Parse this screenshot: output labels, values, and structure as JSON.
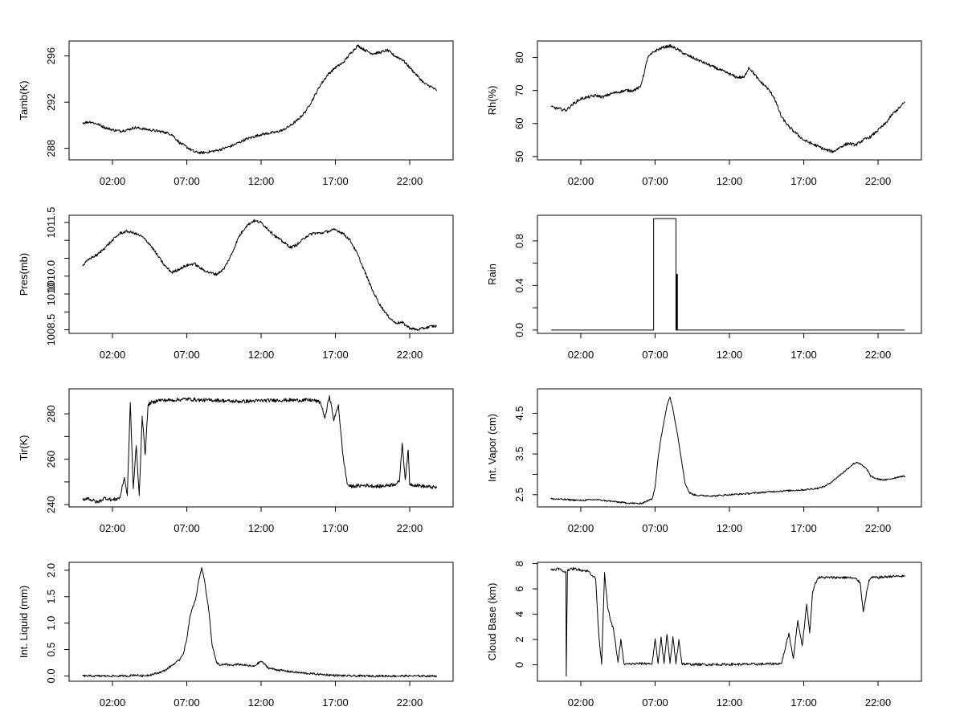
{
  "chart_data": [
    {
      "type": "line",
      "ylabel": "Tamb(K)",
      "xticks": [
        "02:00",
        "07:00",
        "12:00",
        "17:00",
        "22:00"
      ],
      "xlim": [
        0,
        24
      ],
      "ylim": [
        287,
        297.3
      ],
      "yticks": [
        288,
        292,
        296
      ],
      "noise": 0.12,
      "x": [
        0,
        0.5,
        1.0,
        1.5,
        2.0,
        2.5,
        3.0,
        3.5,
        4.0,
        4.5,
        5.0,
        5.5,
        6.0,
        6.5,
        7.0,
        7.5,
        8.0,
        8.5,
        9.0,
        9.5,
        10.0,
        10.5,
        11.0,
        11.5,
        12.0,
        12.5,
        13.0,
        13.5,
        14.0,
        14.5,
        15.0,
        15.5,
        16.0,
        16.5,
        17.0,
        17.5,
        18.0,
        18.5,
        19.0,
        19.5,
        20.0,
        20.5,
        21.0,
        21.5,
        22.0,
        22.5,
        23.0,
        23.5,
        23.8
      ],
      "values": [
        290.2,
        290.3,
        290.1,
        289.8,
        289.6,
        289.5,
        289.6,
        289.8,
        289.7,
        289.6,
        289.5,
        289.4,
        289.2,
        288.5,
        288.1,
        287.7,
        287.6,
        287.7,
        287.8,
        288.0,
        288.2,
        288.5,
        288.8,
        289.0,
        289.2,
        289.3,
        289.4,
        289.6,
        290.0,
        290.5,
        291.2,
        292.3,
        293.5,
        294.4,
        295.0,
        295.4,
        296.2,
        296.9,
        296.5,
        296.2,
        296.3,
        296.5,
        296.0,
        295.7,
        295.0,
        294.3,
        293.6,
        293.3,
        293.0
      ]
    },
    {
      "type": "line",
      "ylabel": "Rh(%)",
      "xticks": [
        "02:00",
        "07:00",
        "12:00",
        "17:00",
        "22:00"
      ],
      "xlim": [
        0,
        24
      ],
      "ylim": [
        49,
        85
      ],
      "yticks": [
        50,
        60,
        70,
        80
      ],
      "noise": 0.45,
      "x": [
        0,
        0.5,
        1.0,
        1.5,
        2.0,
        2.5,
        3.0,
        3.5,
        4.0,
        4.5,
        5.0,
        5.5,
        6.0,
        6.3,
        6.5,
        7.0,
        7.5,
        8.0,
        8.5,
        9.0,
        9.5,
        10.0,
        10.5,
        11.0,
        11.5,
        12.0,
        12.5,
        13.0,
        13.3,
        13.5,
        14.0,
        14.5,
        15.0,
        15.5,
        16.0,
        16.5,
        17.0,
        17.5,
        18.0,
        18.5,
        19.0,
        19.5,
        20.0,
        20.5,
        21.0,
        21.5,
        22.0,
        22.5,
        23.0,
        23.5,
        23.8
      ],
      "values": [
        65,
        64.5,
        64,
        66,
        67.5,
        68,
        68.5,
        68,
        69,
        69.5,
        70,
        70,
        71,
        76,
        80,
        82,
        83,
        83.5,
        82.5,
        81,
        80,
        79,
        78,
        77,
        76,
        75,
        74,
        74,
        77,
        76,
        73,
        71,
        68,
        62,
        59,
        57,
        55,
        54,
        53,
        52,
        51.5,
        53,
        54,
        53.5,
        55,
        56,
        58,
        60,
        63,
        65,
        66.5
      ]
    },
    {
      "type": "line",
      "ylabel": "Pres(mb)",
      "xticks": [
        "02:00",
        "07:00",
        "12:00",
        "17:00",
        "22:00"
      ],
      "xlim": [
        0,
        24
      ],
      "ylim": [
        1008.4,
        1011.7
      ],
      "yticks": [
        1008.5,
        1010.0,
        1011.5
      ],
      "extra_ticks": [
        1009.0,
        1009.5,
        1010.5,
        1011.0
      ],
      "ytick_labels": [
        "1008.5",
        "1010.0",
        "1011.5"
      ],
      "extra_tick_labels": [
        "",
        "1010",
        "",
        ""
      ],
      "noise": 0.04,
      "x": [
        0,
        0.5,
        1.0,
        1.5,
        2.0,
        2.5,
        3.0,
        3.5,
        4.0,
        4.5,
        5.0,
        5.5,
        6.0,
        6.5,
        7.0,
        7.5,
        8.0,
        8.5,
        9.0,
        9.5,
        10.0,
        10.5,
        11.0,
        11.5,
        12.0,
        12.5,
        13.0,
        13.5,
        14.0,
        14.5,
        15.0,
        15.5,
        16.0,
        16.5,
        17.0,
        17.5,
        18.0,
        18.5,
        19.0,
        19.5,
        20.0,
        20.5,
        21.0,
        21.5,
        22.0,
        22.5,
        23.0,
        23.5,
        23.8
      ],
      "values": [
        1010.3,
        1010.5,
        1010.6,
        1010.8,
        1011.0,
        1011.2,
        1011.25,
        1011.2,
        1011.1,
        1010.9,
        1010.6,
        1010.3,
        1010.1,
        1010.2,
        1010.3,
        1010.35,
        1010.2,
        1010.1,
        1010.05,
        1010.2,
        1010.6,
        1011.1,
        1011.4,
        1011.55,
        1011.5,
        1011.3,
        1011.1,
        1010.95,
        1010.8,
        1010.9,
        1011.1,
        1011.2,
        1011.2,
        1011.25,
        1011.3,
        1011.2,
        1011.0,
        1010.6,
        1010.1,
        1009.6,
        1009.2,
        1008.9,
        1008.7,
        1008.7,
        1008.55,
        1008.5,
        1008.55,
        1008.6,
        1008.6
      ]
    },
    {
      "type": "line",
      "ylabel": "Rain",
      "xticks": [
        "02:00",
        "07:00",
        "12:00",
        "17:00",
        "22:00"
      ],
      "xlim": [
        0,
        24
      ],
      "ylim": [
        -0.03,
        1.03
      ],
      "yticks": [
        0.0,
        0.4,
        0.8
      ],
      "ytick_labels": [
        "0.0",
        "0.4",
        "0.8"
      ],
      "extra_ticks": [
        0.2,
        0.6
      ],
      "noise": 0,
      "x": [
        0,
        6.9,
        6.9,
        8.4,
        8.4,
        8.45,
        8.45,
        8.5,
        8.5,
        23.8
      ],
      "values": [
        0,
        0,
        1,
        1,
        0,
        0,
        0.5,
        0.5,
        0,
        0
      ]
    },
    {
      "type": "line",
      "ylabel": "Tir(K)",
      "xticks": [
        "02:00",
        "07:00",
        "12:00",
        "17:00",
        "22:00"
      ],
      "xlim": [
        0,
        24
      ],
      "ylim": [
        239,
        291
      ],
      "yticks": [
        240,
        260,
        280
      ],
      "extra_ticks": [
        250,
        270
      ],
      "noise": 0.8,
      "x": [
        0,
        0.3,
        0.6,
        1.0,
        1.5,
        2.0,
        2.5,
        2.8,
        3.0,
        3.2,
        3.4,
        3.6,
        3.8,
        4.0,
        4.2,
        4.4,
        4.6,
        4.8,
        5.0,
        6.0,
        7.0,
        8.0,
        9.0,
        10.0,
        11.0,
        12.0,
        13.0,
        14.0,
        15.0,
        15.5,
        16.0,
        16.3,
        16.6,
        16.9,
        17.2,
        17.5,
        17.8,
        18.0,
        19.0,
        20.0,
        21.0,
        21.3,
        21.5,
        21.7,
        21.9,
        22.0,
        23.0,
        23.8
      ],
      "values": [
        242,
        243,
        242,
        241,
        243,
        242,
        243,
        252,
        244,
        285,
        247,
        266,
        244,
        279,
        262,
        284,
        285,
        285,
        286,
        286,
        286.5,
        286,
        286,
        285.5,
        285.5,
        285.8,
        286,
        286,
        286,
        286,
        285,
        278,
        288,
        277,
        284,
        262,
        249,
        248,
        248.5,
        248,
        249,
        250,
        267,
        251,
        264,
        249,
        248,
        247.5
      ]
    },
    {
      "type": "line",
      "ylabel": "Int. Vapor (cm)",
      "xticks": [
        "02:00",
        "07:00",
        "12:00",
        "17:00",
        "22:00"
      ],
      "xlim": [
        0,
        24
      ],
      "ylim": [
        2.2,
        5.1
      ],
      "yticks": [
        2.5,
        3.5,
        4.5
      ],
      "extra_ticks": [
        3.0,
        4.0
      ],
      "noise": 0.02,
      "x": [
        0,
        1.0,
        2.0,
        3.0,
        4.0,
        5.0,
        6.0,
        6.5,
        6.8,
        7.0,
        7.2,
        7.4,
        7.6,
        7.8,
        8.0,
        8.2,
        8.5,
        8.8,
        9.0,
        9.3,
        9.6,
        10.0,
        11.0,
        12.0,
        13.0,
        14.0,
        15.0,
        16.0,
        17.0,
        18.0,
        18.5,
        19.0,
        19.5,
        20.0,
        20.3,
        20.6,
        21.0,
        21.3,
        21.5,
        22.0,
        22.5,
        23.0,
        23.5,
        23.8
      ],
      "values": [
        2.4,
        2.38,
        2.36,
        2.38,
        2.34,
        2.3,
        2.28,
        2.35,
        2.4,
        2.7,
        3.4,
        3.9,
        4.3,
        4.7,
        4.9,
        4.6,
        4.0,
        3.3,
        2.8,
        2.55,
        2.5,
        2.48,
        2.47,
        2.5,
        2.52,
        2.55,
        2.58,
        2.6,
        2.62,
        2.66,
        2.72,
        2.85,
        3.0,
        3.15,
        3.25,
        3.3,
        3.2,
        3.1,
        2.95,
        2.88,
        2.86,
        2.9,
        2.95,
        2.95
      ]
    },
    {
      "type": "line",
      "ylabel": "Int. Liquid (mm)",
      "xticks": [
        "02:00",
        "07:00",
        "12:00",
        "17:00",
        "22:00"
      ],
      "xlim": [
        0,
        24
      ],
      "ylim": [
        -0.1,
        2.15
      ],
      "yticks": [
        0.0,
        0.5,
        1.0,
        1.5,
        2.0
      ],
      "ytick_labels": [
        "0.0",
        "0.5",
        "1.0",
        "1.5",
        "2.0"
      ],
      "noise": 0.02,
      "x": [
        0,
        3.0,
        3.5,
        4.0,
        4.5,
        5.0,
        5.5,
        6.0,
        6.5,
        6.8,
        7.0,
        7.2,
        7.4,
        7.6,
        7.8,
        8.0,
        8.2,
        8.5,
        8.7,
        9.0,
        9.3,
        9.6,
        10.0,
        10.5,
        11.0,
        11.5,
        12.0,
        12.5,
        13.0,
        14.0,
        15.0,
        16.0,
        17.0,
        18.0,
        23.8
      ],
      "values": [
        0,
        0,
        0.02,
        0,
        0.02,
        0.05,
        0.1,
        0.2,
        0.3,
        0.45,
        0.7,
        1.1,
        1.3,
        1.45,
        1.8,
        2.05,
        1.8,
        1.2,
        0.6,
        0.25,
        0.2,
        0.22,
        0.2,
        0.22,
        0.2,
        0.18,
        0.28,
        0.15,
        0.12,
        0.08,
        0.05,
        0.03,
        0.01,
        0,
        0
      ]
    },
    {
      "type": "line",
      "ylabel": "Cloud Base (km)",
      "xticks": [
        "02:00",
        "07:00",
        "12:00",
        "17:00",
        "22:00"
      ],
      "xlim": [
        0,
        24
      ],
      "ylim": [
        -1.3,
        8.1
      ],
      "yticks": [
        0,
        2,
        4,
        6,
        8
      ],
      "noise": 0.1,
      "x": [
        0,
        0.5,
        0.8,
        1.0,
        1.02,
        1.1,
        1.5,
        2.0,
        2.5,
        3.0,
        3.2,
        3.4,
        3.6,
        3.8,
        4.0,
        4.2,
        4.5,
        4.7,
        4.9,
        5.0,
        6.0,
        6.8,
        7.0,
        7.2,
        7.4,
        7.6,
        7.8,
        8.0,
        8.2,
        8.4,
        8.6,
        8.8,
        9.0,
        10.0,
        12.0,
        14.0,
        15.0,
        15.5,
        16.0,
        16.3,
        16.6,
        16.9,
        17.2,
        17.4,
        17.6,
        17.8,
        18.0,
        19.0,
        20.0,
        20.5,
        20.8,
        21.0,
        21.2,
        21.4,
        21.6,
        22.0,
        23.0,
        23.8
      ],
      "values": [
        7.5,
        7.6,
        7.4,
        7.3,
        -0.9,
        7.5,
        7.6,
        7.5,
        7.4,
        6.8,
        2.5,
        0.1,
        7.3,
        4.6,
        3.5,
        2.8,
        0.2,
        2.0,
        0.1,
        0.05,
        0.1,
        0.1,
        2.0,
        0.1,
        2.2,
        0.1,
        2.4,
        0.1,
        2.2,
        0.1,
        2.0,
        0.1,
        0.05,
        0.02,
        0.03,
        0.05,
        0.08,
        0.1,
        2.5,
        0.5,
        3.5,
        1.5,
        4.8,
        2.5,
        5.8,
        6.5,
        6.9,
        6.9,
        6.9,
        6.8,
        6.5,
        4.2,
        5.5,
        6.7,
        6.9,
        6.9,
        7.0,
        7.0
      ]
    }
  ]
}
